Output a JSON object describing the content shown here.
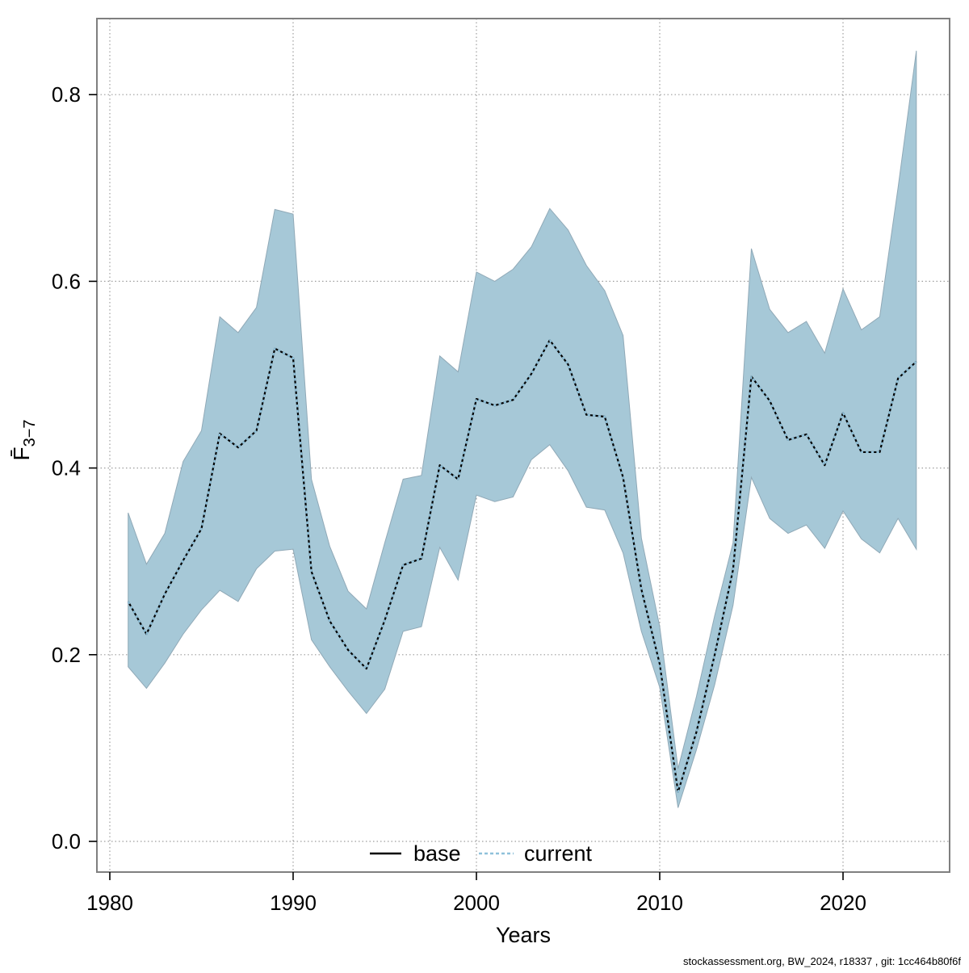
{
  "page": {
    "background": "#ffffff"
  },
  "footer": {
    "text": "stockassessment.org, BW_2024, r18337 , git: 1cc464b80f6f"
  },
  "axes": {
    "x_label": "Years",
    "y_label_main": "F̄",
    "y_label_sub": "3−7",
    "x_ticks": [
      1980,
      1990,
      2000,
      2010,
      2020
    ],
    "y_ticks": [
      0.0,
      0.2,
      0.4,
      0.6,
      0.8
    ]
  },
  "legend": {
    "position": "bottom-center",
    "items": [
      {
        "label": "base",
        "color": "#000000",
        "style": "solid"
      },
      {
        "label": "current",
        "color": "#8fc1da",
        "style": "dotted"
      }
    ]
  },
  "colors": {
    "band_fill": "#a6c8d7",
    "band_edge": "#90a9b7",
    "grid": "#9e9e9e",
    "border": "#7f7f7f",
    "tick": "#000000",
    "base_line": "#000000",
    "current_line": "#8fc1da"
  },
  "chart_data": {
    "type": "area",
    "title": "",
    "xlabel": "Years",
    "ylabel": "F-bar ages 3-7",
    "grid": true,
    "legend_position": "bottom-center",
    "xlim": [
      1979.3,
      2025.8
    ],
    "ylim": [
      -0.033,
      0.881
    ],
    "x": [
      1981,
      1982,
      1983,
      1984,
      1985,
      1986,
      1987,
      1988,
      1989,
      1990,
      1991,
      1992,
      1993,
      1994,
      1995,
      1996,
      1997,
      1998,
      1999,
      2000,
      2001,
      2002,
      2003,
      2004,
      2005,
      2006,
      2007,
      2008,
      2009,
      2010,
      2011,
      2012,
      2013,
      2014,
      2015,
      2016,
      2017,
      2018,
      2019,
      2020,
      2021,
      2022,
      2023,
      2024
    ],
    "series": [
      {
        "name": "base",
        "style": "solid",
        "color": "#000000",
        "values": [
          0.257,
          0.222,
          0.265,
          0.301,
          0.335,
          0.437,
          0.422,
          0.44,
          0.528,
          0.518,
          0.289,
          0.236,
          0.205,
          0.185,
          0.237,
          0.296,
          0.303,
          0.403,
          0.388,
          0.474,
          0.467,
          0.473,
          0.501,
          0.537,
          0.511,
          0.457,
          0.455,
          0.39,
          0.27,
          0.19,
          0.053,
          0.117,
          0.2,
          0.291,
          0.498,
          0.472,
          0.43,
          0.436,
          0.403,
          0.459,
          0.417,
          0.417,
          0.496,
          0.514
        ]
      },
      {
        "name": "current",
        "style": "dotted",
        "color": "#8fc1da",
        "values": [
          0.257,
          0.222,
          0.265,
          0.301,
          0.335,
          0.437,
          0.422,
          0.44,
          0.528,
          0.518,
          0.289,
          0.236,
          0.205,
          0.185,
          0.237,
          0.296,
          0.303,
          0.403,
          0.388,
          0.474,
          0.467,
          0.473,
          0.501,
          0.537,
          0.511,
          0.457,
          0.455,
          0.39,
          0.27,
          0.19,
          0.053,
          0.117,
          0.2,
          0.291,
          0.498,
          0.472,
          0.43,
          0.436,
          0.403,
          0.459,
          0.417,
          0.417,
          0.496,
          0.514
        ]
      }
    ],
    "band": {
      "name": "confidence-band",
      "lower": [
        0.187,
        0.164,
        0.191,
        0.222,
        0.248,
        0.269,
        0.257,
        0.292,
        0.311,
        0.313,
        0.216,
        0.187,
        0.161,
        0.137,
        0.163,
        0.225,
        0.23,
        0.315,
        0.28,
        0.371,
        0.364,
        0.369,
        0.409,
        0.425,
        0.397,
        0.358,
        0.355,
        0.309,
        0.225,
        0.165,
        0.036,
        0.098,
        0.168,
        0.253,
        0.39,
        0.346,
        0.33,
        0.339,
        0.314,
        0.354,
        0.324,
        0.309,
        0.346,
        0.313
      ],
      "upper": [
        0.352,
        0.297,
        0.33,
        0.407,
        0.44,
        0.562,
        0.545,
        0.572,
        0.677,
        0.672,
        0.388,
        0.316,
        0.268,
        0.249,
        0.32,
        0.388,
        0.392,
        0.52,
        0.503,
        0.61,
        0.6,
        0.613,
        0.637,
        0.678,
        0.655,
        0.617,
        0.59,
        0.542,
        0.325,
        0.23,
        0.078,
        0.155,
        0.242,
        0.32,
        0.635,
        0.57,
        0.545,
        0.557,
        0.523,
        0.592,
        0.548,
        0.562,
        0.7,
        0.847
      ]
    }
  }
}
